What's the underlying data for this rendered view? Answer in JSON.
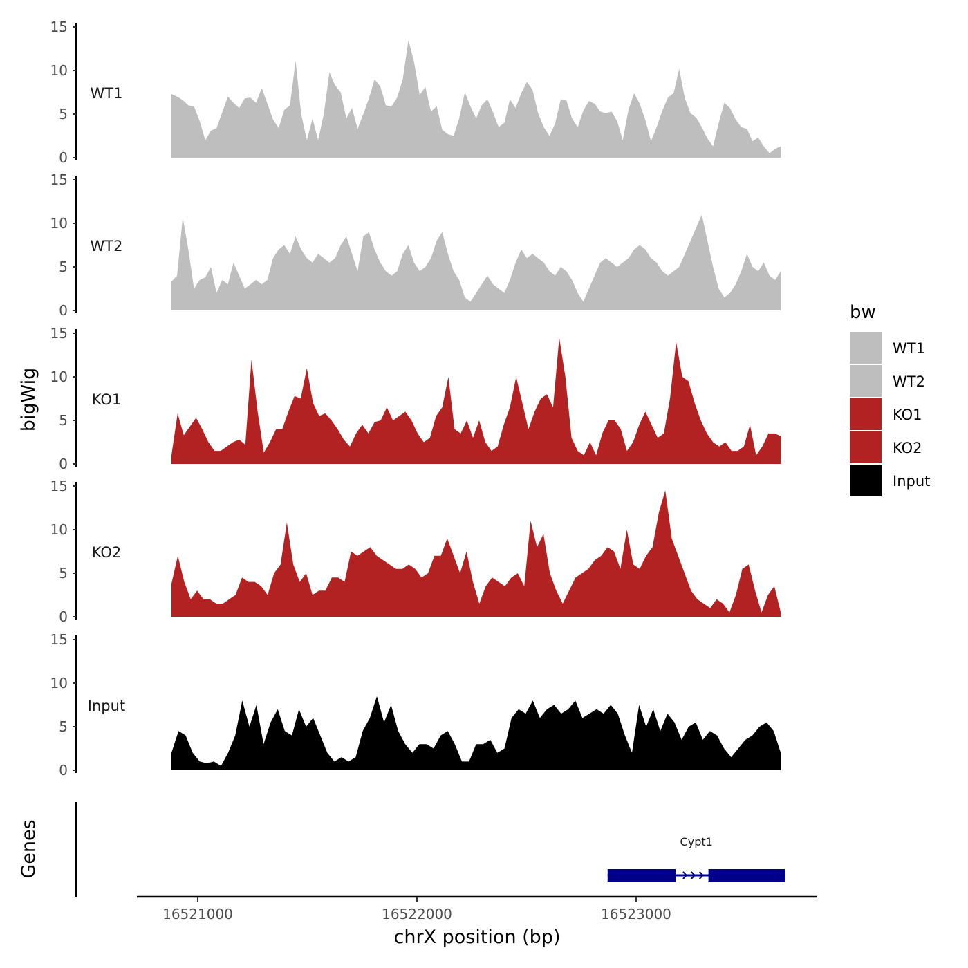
{
  "chart_data": {
    "type": "area",
    "xlabel": "chrX position (bp)",
    "ylabel": "bigWig",
    "genes_label": "Genes",
    "xlim": [
      16520720,
      16523820
    ],
    "x_ticks": [
      16521000,
      16522000,
      16523000
    ],
    "x_tick_labels": [
      "16521000",
      "16522000",
      "16523000"
    ],
    "ylim": [
      0,
      15
    ],
    "y_ticks": [
      0,
      5,
      10,
      15
    ],
    "y_tick_labels": [
      "0",
      "5",
      "10",
      "15"
    ],
    "region": [
      16520880,
      16523660
    ],
    "legend": {
      "title": "bw",
      "entries": [
        {
          "label": "WT1",
          "color": "#bebebe"
        },
        {
          "label": "WT2",
          "color": "#bebebe"
        },
        {
          "label": "KO1",
          "color": "#b22222"
        },
        {
          "label": "KO2",
          "color": "#b22222"
        },
        {
          "label": "Input",
          "color": "#000000"
        }
      ]
    },
    "series": [
      {
        "name": "WT1",
        "color": "#bebebe",
        "values": [
          7.3,
          7.0,
          6.6,
          6.0,
          5.9,
          4.2,
          2.0,
          3.1,
          3.4,
          5.2,
          7.0,
          6.3,
          5.7,
          6.8,
          6.9,
          6.3,
          8.0,
          6.2,
          4.4,
          3.4,
          5.5,
          6.0,
          11.1,
          5.0,
          2.0,
          4.5,
          2.0,
          5.0,
          9.8,
          8.3,
          7.5,
          4.5,
          5.7,
          3.3,
          5.0,
          6.8,
          9.0,
          8.2,
          6.0,
          5.9,
          6.9,
          9.0,
          13.5,
          11.0,
          7.2,
          8.1,
          5.3,
          5.9,
          3.2,
          2.7,
          2.5,
          4.5,
          7.5,
          5.9,
          4.5,
          6.0,
          6.7,
          5.2,
          3.5,
          4.0,
          6.7,
          5.7,
          7.4,
          8.7,
          7.8,
          5.1,
          3.5,
          2.5,
          3.9,
          6.7,
          6.6,
          4.5,
          3.5,
          5.4,
          6.5,
          6.2,
          5.3,
          5.1,
          5.3,
          4.2,
          2.0,
          5.5,
          7.4,
          6.2,
          4.3,
          1.9,
          3.5,
          5.4,
          6.9,
          7.4,
          10.2,
          6.8,
          5.1,
          4.6,
          3.5,
          2.2,
          1.3,
          4.0,
          6.3,
          5.7,
          4.4,
          3.5,
          3.3,
          1.9,
          2.3,
          1.3,
          0.5,
          1.0,
          1.3
        ]
      },
      {
        "name": "WT2",
        "color": "#bebebe",
        "values": [
          3.3,
          4.0,
          10.7,
          7.0,
          2.5,
          3.5,
          3.8,
          5.0,
          2.0,
          3.5,
          3.0,
          5.5,
          4.0,
          2.5,
          3.0,
          3.5,
          3.0,
          3.5,
          6.0,
          7.0,
          7.5,
          6.5,
          8.5,
          7.0,
          6.0,
          5.5,
          6.5,
          6.0,
          5.5,
          6.0,
          7.5,
          8.5,
          6.5,
          4.5,
          8.5,
          9.0,
          7.0,
          5.5,
          4.5,
          4.0,
          4.5,
          6.5,
          7.5,
          5.5,
          4.5,
          5.0,
          6.0,
          8.0,
          9.0,
          6.5,
          4.5,
          3.5,
          1.5,
          1.0,
          2.0,
          3.0,
          4.0,
          3.0,
          2.5,
          2.0,
          3.5,
          5.5,
          7.0,
          6.0,
          6.5,
          6.0,
          5.5,
          4.5,
          4.0,
          5.0,
          4.5,
          3.5,
          2.0,
          1.0,
          2.5,
          4.0,
          5.5,
          6.0,
          5.5,
          5.0,
          5.5,
          6.0,
          7.0,
          7.5,
          7.0,
          6.0,
          5.5,
          4.5,
          4.0,
          4.5,
          5.0,
          6.5,
          8.0,
          9.5,
          11.0,
          8.0,
          5.0,
          2.5,
          1.5,
          2.0,
          3.0,
          4.5,
          6.5,
          5.0,
          4.5,
          5.5,
          4.0,
          3.5,
          4.5
        ]
      },
      {
        "name": "KO1",
        "color": "#b22222",
        "values": [
          1.0,
          5.8,
          3.3,
          4.3,
          5.3,
          4.0,
          2.5,
          1.5,
          1.5,
          2.0,
          2.5,
          2.8,
          2.2,
          12.0,
          6.0,
          1.3,
          2.5,
          4.0,
          4.0,
          6.0,
          7.8,
          7.5,
          11.0,
          7.0,
          5.5,
          5.8,
          5.0,
          4.0,
          2.8,
          2.0,
          3.5,
          4.5,
          3.5,
          4.8,
          5.0,
          6.5,
          5.0,
          5.5,
          6.0,
          5.0,
          3.5,
          2.5,
          3.0,
          5.5,
          6.5,
          10.0,
          4.0,
          3.5,
          5.0,
          3.0,
          5.0,
          2.5,
          1.5,
          2.0,
          4.5,
          6.5,
          10.0,
          7.0,
          4.0,
          6.0,
          7.5,
          8.0,
          6.5,
          14.5,
          10.0,
          3.0,
          1.5,
          1.0,
          2.5,
          1.0,
          3.5,
          5.0,
          5.0,
          4.0,
          1.5,
          2.5,
          4.5,
          6.0,
          4.5,
          3.0,
          3.5,
          7.5,
          14.0,
          10.0,
          9.5,
          7.0,
          5.0,
          3.5,
          2.5,
          2.0,
          2.5,
          1.5,
          1.5,
          2.0,
          4.5,
          1.0,
          2.0,
          3.5,
          3.5,
          3.2
        ]
      },
      {
        "name": "KO2",
        "color": "#b22222",
        "values": [
          3.8,
          7.0,
          4.0,
          2.0,
          3.0,
          2.0,
          2.0,
          1.5,
          1.5,
          2.0,
          2.5,
          4.5,
          4.0,
          4.0,
          3.5,
          2.5,
          5.0,
          6.0,
          10.8,
          6.0,
          4.0,
          5.0,
          2.5,
          3.0,
          3.0,
          4.5,
          4.5,
          4.0,
          7.5,
          7.0,
          7.5,
          8.0,
          7.0,
          6.5,
          6.0,
          5.5,
          5.5,
          6.0,
          5.5,
          4.5,
          5.0,
          7.0,
          7.0,
          9.0,
          7.0,
          5.0,
          7.5,
          4.0,
          1.5,
          3.5,
          4.5,
          4.0,
          3.5,
          4.5,
          5.0,
          3.5,
          11.0,
          8.0,
          9.5,
          5.0,
          3.0,
          1.5,
          3.0,
          4.5,
          5.0,
          5.5,
          6.5,
          7.0,
          8.0,
          7.5,
          5.5,
          10.0,
          6.0,
          5.5,
          7.0,
          8.0,
          12.0,
          14.5,
          9.0,
          7.0,
          5.0,
          3.0,
          2.0,
          1.5,
          1.0,
          2.0,
          1.5,
          0.5,
          2.5,
          5.5,
          6.0,
          3.0,
          0.5,
          2.5,
          3.5,
          0.5
        ]
      },
      {
        "name": "Input",
        "color": "#000000",
        "values": [
          2.0,
          4.5,
          4.0,
          2.0,
          1.0,
          0.8,
          1.0,
          0.5,
          2.0,
          4.0,
          8.0,
          5.0,
          7.5,
          3.0,
          5.5,
          7.0,
          4.5,
          4.0,
          7.0,
          5.0,
          6.0,
          4.0,
          2.0,
          1.0,
          1.5,
          1.0,
          1.5,
          4.5,
          6.0,
          8.5,
          5.5,
          7.5,
          4.5,
          3.0,
          2.0,
          3.0,
          3.0,
          2.5,
          4.0,
          4.5,
          3.0,
          1.0,
          1.0,
          3.0,
          3.0,
          3.5,
          2.0,
          2.5,
          6.0,
          7.0,
          6.5,
          8.0,
          6.0,
          7.0,
          7.5,
          6.5,
          7.0,
          8.0,
          6.0,
          6.5,
          7.0,
          6.5,
          7.5,
          6.5,
          4.0,
          2.0,
          7.5,
          5.0,
          7.0,
          4.5,
          6.5,
          5.5,
          3.5,
          5.0,
          5.5,
          3.5,
          4.5,
          4.0,
          2.5,
          1.5,
          2.5,
          3.5,
          4.0,
          5.0,
          5.5,
          4.5,
          2.0
        ]
      }
    ],
    "gene": {
      "name": "Cypt1",
      "color": "#00008b",
      "start": 16522870,
      "end": 16523680,
      "exons": [
        [
          16522870,
          16523180
        ],
        [
          16523330,
          16523680
        ]
      ],
      "strand": "+"
    }
  }
}
